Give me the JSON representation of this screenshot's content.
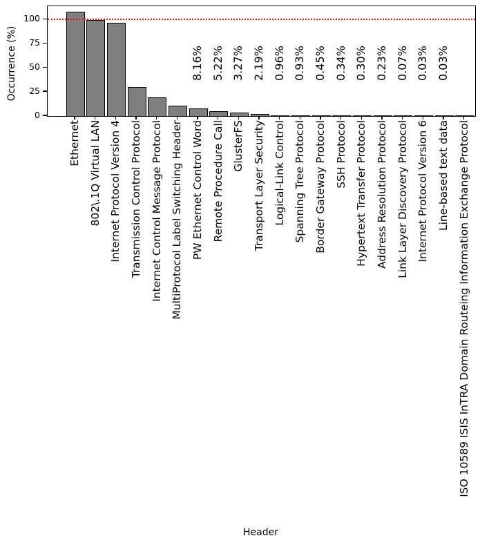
{
  "chart_data": {
    "type": "bar",
    "title": "",
    "xlabel": "Header",
    "ylabel": "Occurrence (%)",
    "ylim": [
      0,
      113.8
    ],
    "yticks": [
      "0",
      "25",
      "50",
      "75",
      "100"
    ],
    "ytick_values": [
      0,
      25,
      50,
      75,
      100
    ],
    "grid": false,
    "legend": "none",
    "bar_color": "#7f7f7f",
    "bar_edge_color": "#000000",
    "reference_line": {
      "y": 100,
      "color": "#ff0000",
      "style": "dotted"
    },
    "categories": [
      "Ethernet",
      "802\\.1Q Virtual LAN",
      "Internet Protocol Version 4",
      "Transmission Control Protocol",
      "Internet Control Message Protocol",
      "MultiProtocol Label Switching Header",
      "PW Ethernet Control Word",
      "Remote Procedure Call",
      "GlusterFS",
      "Transport Layer Security",
      "Logical-Link Control",
      "Spanning Tree Protocol",
      "Border Gateway Protocol",
      "SSH Protocol",
      "Hypertext Transfer Protocol",
      "Address Resolution Protocol",
      "Link Layer Discovery Protocol",
      "Internet Protocol Version 6",
      "Line-based text data",
      "ISO 10589 ISIS InTRA Domain Routeing Information Exchange Protocol"
    ],
    "values": [
      108.1,
      99.3,
      96.6,
      30.1,
      19.5,
      11.0,
      8.16,
      5.22,
      3.27,
      2.19,
      0.96,
      0.93,
      0.45,
      0.34,
      0.3,
      0.23,
      0.07,
      0.03,
      0.03,
      0.02
    ],
    "bar_labels": [
      "",
      "",
      "",
      "",
      "",
      "",
      "8.16%",
      "5.22%",
      "3.27%",
      "2.19%",
      "0.96%",
      "0.93%",
      "0.45%",
      "0.34%",
      "0.30%",
      "0.23%",
      "0.07%",
      "0.03%",
      "0.03%",
      ""
    ]
  }
}
